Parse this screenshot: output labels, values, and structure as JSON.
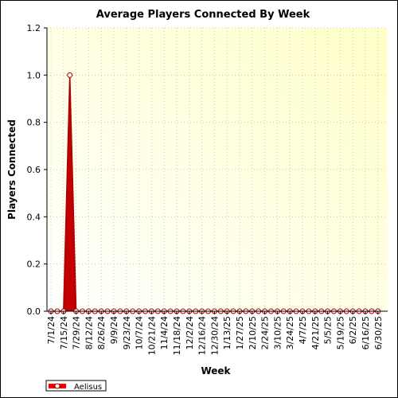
{
  "chart_data": {
    "type": "area",
    "title": "Average Players Connected By Week",
    "xlabel": "Week",
    "ylabel": "Players Connected",
    "ylim": [
      0,
      1.2
    ],
    "y_ticks": [
      "0.0",
      "0.2",
      "0.4",
      "0.6",
      "0.8",
      "1.0",
      "1.2"
    ],
    "x_tick_labels": [
      "7/1/24",
      "7/15/24",
      "7/29/24",
      "8/12/24",
      "8/26/24",
      "9/9/24",
      "9/23/24",
      "10/7/24",
      "10/21/24",
      "11/4/24",
      "11/18/24",
      "12/2/24",
      "12/16/24",
      "12/30/24",
      "1/13/25",
      "1/27/25",
      "2/10/25",
      "2/24/25",
      "3/10/25",
      "3/24/25",
      "4/7/25",
      "4/21/25",
      "5/5/25",
      "5/19/25",
      "6/2/25",
      "6/16/25",
      "6/30/25"
    ],
    "grid": true,
    "legend_position": "bottom-left",
    "series": [
      {
        "name": "Aelisus",
        "color": "#ff0000",
        "x": [
          "7/1/24",
          "7/8/24",
          "7/15/24",
          "7/22/24",
          "7/29/24",
          "8/5/24",
          "8/12/24",
          "8/19/24",
          "8/26/24",
          "9/2/24",
          "9/9/24",
          "9/16/24",
          "9/23/24",
          "9/30/24",
          "10/7/24",
          "10/14/24",
          "10/21/24",
          "10/28/24",
          "11/4/24",
          "11/11/24",
          "11/18/24",
          "11/25/24",
          "12/2/24",
          "12/9/24",
          "12/16/24",
          "12/23/24",
          "12/30/24",
          "1/6/25",
          "1/13/25",
          "1/20/25",
          "1/27/25",
          "2/3/25",
          "2/10/25",
          "2/17/25",
          "2/24/25",
          "3/3/25",
          "3/10/25",
          "3/17/25",
          "3/24/25",
          "3/31/25",
          "4/7/25",
          "4/14/25",
          "4/21/25",
          "4/28/25",
          "5/5/25",
          "5/12/25",
          "5/19/25",
          "5/26/25",
          "6/2/25",
          "6/9/25",
          "6/16/25",
          "6/23/25",
          "6/30/25"
        ],
        "values": [
          0,
          0,
          0,
          1.0,
          0,
          0,
          0,
          0,
          0,
          0,
          0,
          0,
          0,
          0,
          0,
          0,
          0,
          0,
          0,
          0,
          0,
          0,
          0,
          0,
          0,
          0,
          0,
          0,
          0,
          0,
          0,
          0,
          0,
          0,
          0,
          0,
          0,
          0,
          0,
          0,
          0,
          0,
          0,
          0,
          0,
          0,
          0,
          0,
          0,
          0,
          0,
          0,
          0
        ]
      }
    ]
  }
}
